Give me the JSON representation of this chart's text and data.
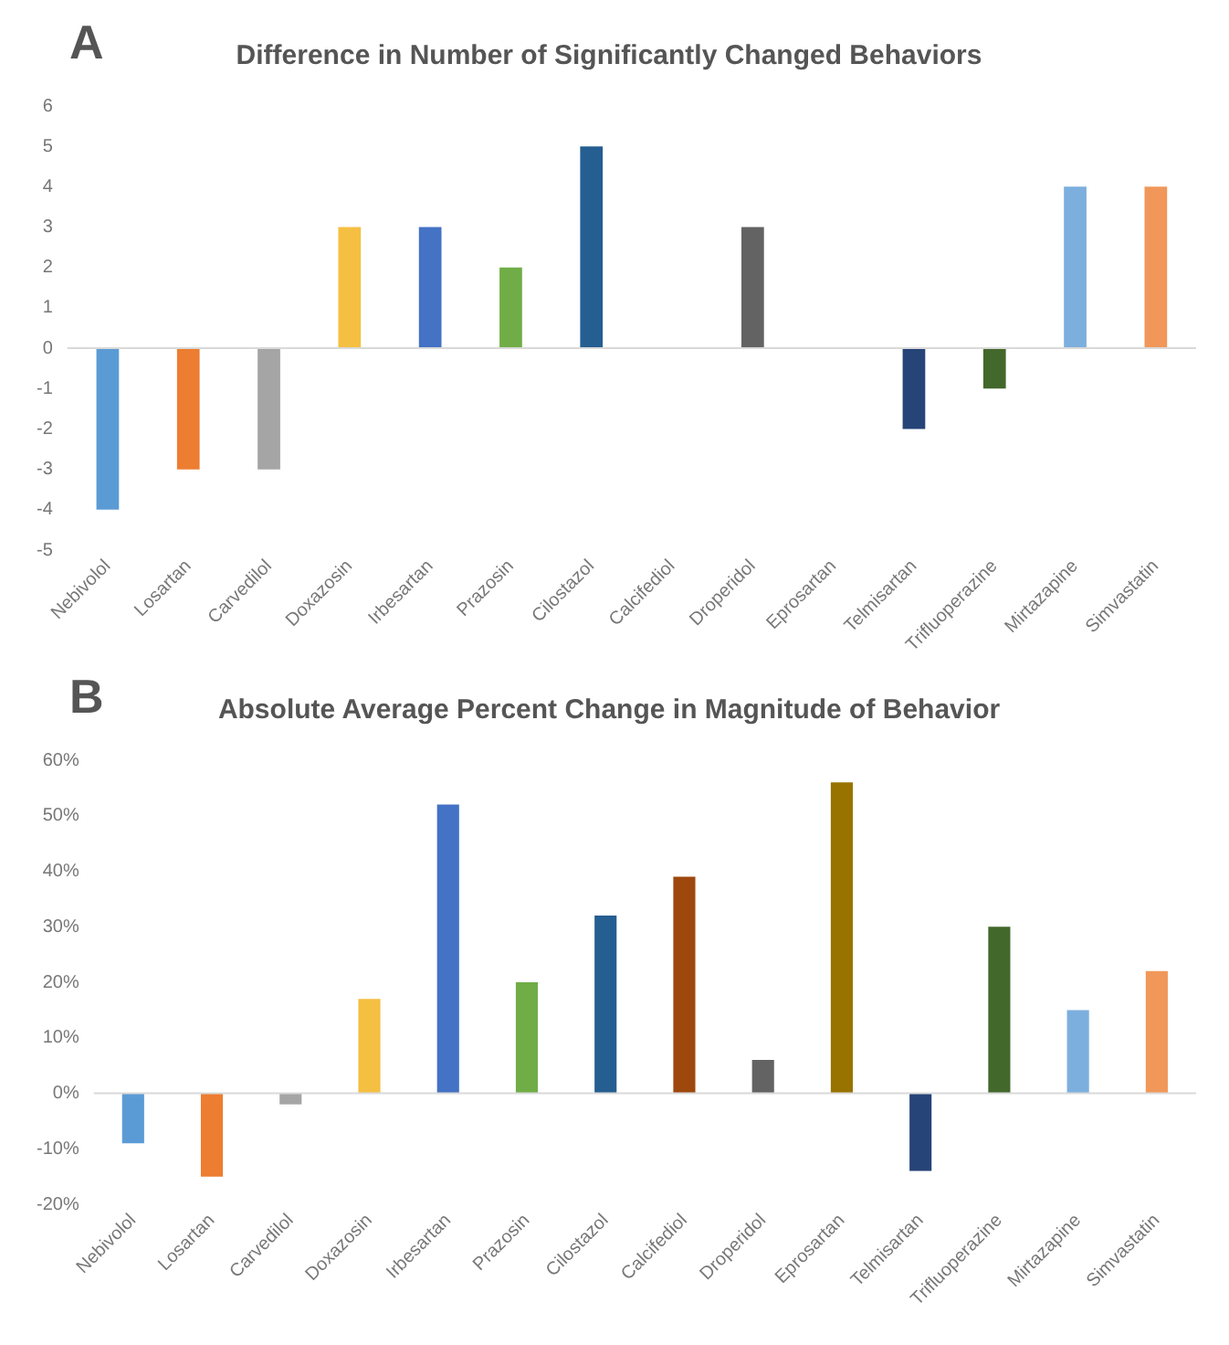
{
  "chart_data": [
    {
      "type": "bar",
      "title": "Difference in Number of Significantly Changed Behaviors",
      "annotations": [
        "A"
      ],
      "categories": [
        "Nebivolol",
        "Losartan",
        "Carvedilol",
        "Doxazosin",
        "Irbesartan",
        "Prazosin",
        "Cilostazol",
        "Calcifediol",
        "Droperidol",
        "Eprosartan",
        "Telmisartan",
        "Trifluoperazine",
        "Mirtazapine",
        "Simvastatin"
      ],
      "values": [
        -4,
        -3,
        -3,
        3,
        3,
        2,
        5,
        0,
        3,
        0,
        -2,
        -1,
        4,
        4
      ],
      "colors": [
        "#5b9bd5",
        "#ed7d31",
        "#a5a5a5",
        "#f5bf42",
        "#4472c4",
        "#70ad47",
        "#255e91",
        "#9e480e",
        "#636363",
        "#997300",
        "#264478",
        "#43682b",
        "#7cafdd",
        "#f1975a"
      ],
      "ylim": [
        -5,
        6
      ],
      "yticks": [
        -5,
        -4,
        -3,
        -2,
        -1,
        0,
        1,
        2,
        3,
        4,
        5,
        6
      ],
      "grid": false,
      "legend": false,
      "ref_lines": [
        {
          "axis": "y",
          "value": 0,
          "color": "#d9d9d9"
        }
      ]
    },
    {
      "type": "bar",
      "title": "Absolute Average Percent Change in Magnitude of Behavior",
      "annotations": [
        "B"
      ],
      "categories": [
        "Nebivolol",
        "Losartan",
        "Carvedilol",
        "Doxazosin",
        "Irbesartan",
        "Prazosin",
        "Cilostazol",
        "Calcifediol",
        "Droperidol",
        "Eprosartan",
        "Telmisartan",
        "Trifluoperazine",
        "Mirtazapine",
        "Simvastatin"
      ],
      "values": [
        -9,
        -15,
        -2,
        17,
        52,
        20,
        32,
        39,
        6,
        56,
        -14,
        30,
        15,
        22
      ],
      "colors": [
        "#5b9bd5",
        "#ed7d31",
        "#a5a5a5",
        "#f5bf42",
        "#4472c4",
        "#70ad47",
        "#255e91",
        "#9e480e",
        "#636363",
        "#997300",
        "#264478",
        "#43682b",
        "#7cafdd",
        "#f1975a"
      ],
      "ylim": [
        -20,
        60
      ],
      "yticks": [
        {
          "value": -20,
          "label": "-20%"
        },
        {
          "value": -10,
          "label": "-10%"
        },
        {
          "value": 0,
          "label": "0%"
        },
        {
          "value": 10,
          "label": "10%"
        },
        {
          "value": 20,
          "label": "20%"
        },
        {
          "value": 30,
          "label": "30%"
        },
        {
          "value": 40,
          "label": "40%"
        },
        {
          "value": 50,
          "label": "50%"
        },
        {
          "value": 60,
          "label": "60%"
        }
      ],
      "grid": false,
      "legend": false,
      "ref_lines": [
        {
          "axis": "y",
          "value": 0,
          "color": "#d9d9d9"
        }
      ]
    }
  ]
}
